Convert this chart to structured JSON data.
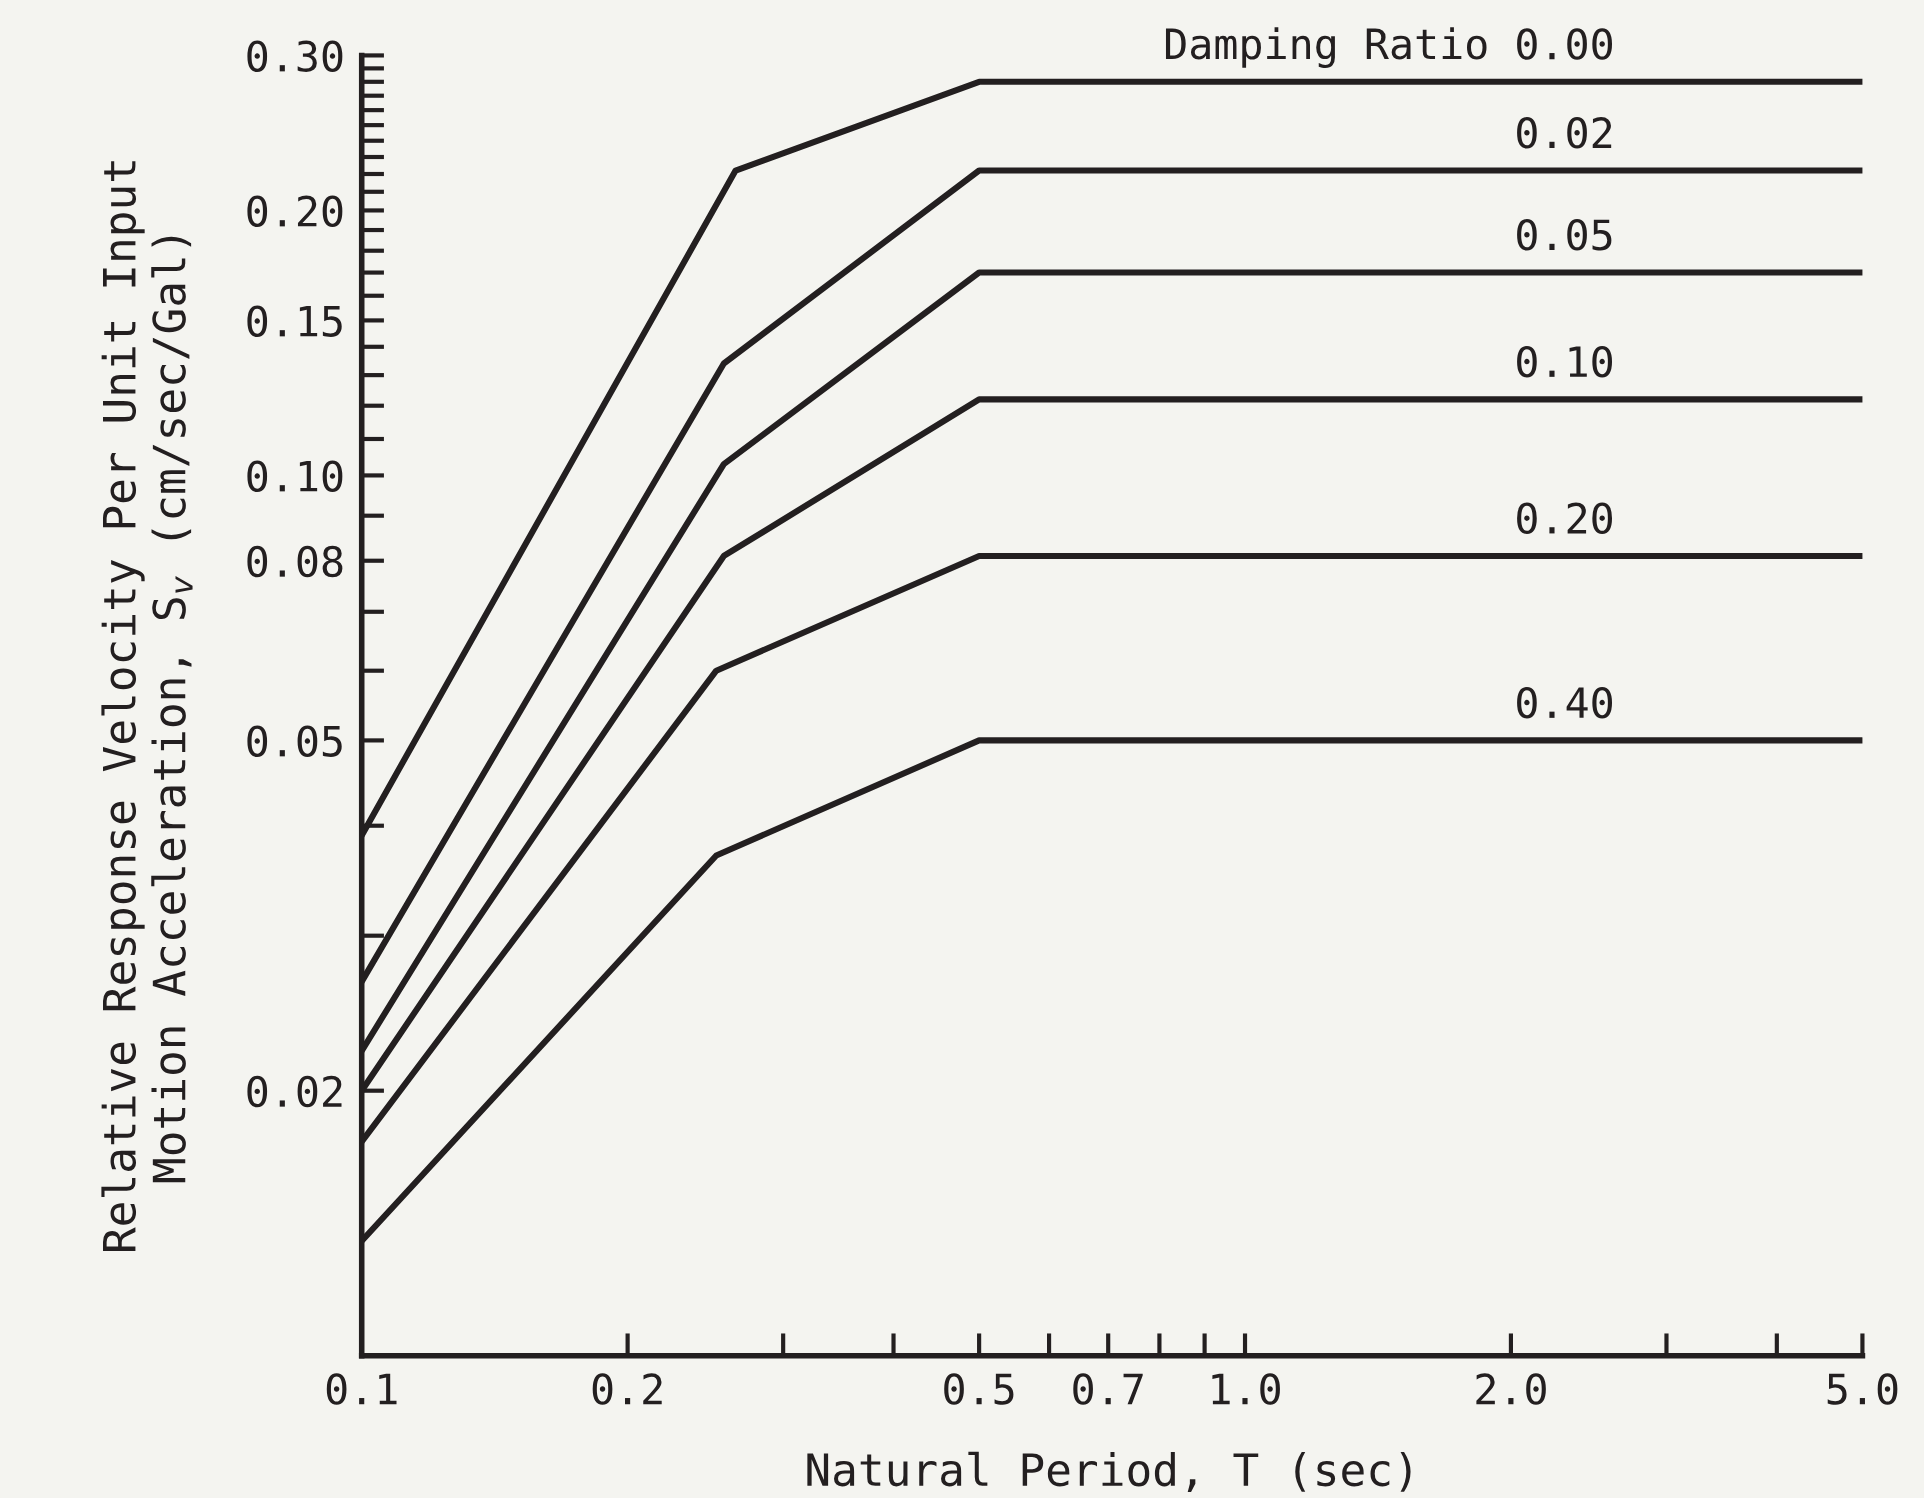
{
  "chart_data": {
    "type": "line",
    "xlabel": "Natural Period, T (sec)",
    "ylabel": "Relative Response Velocity Per Unit Input\nMotion Acceleration, S$_{v}$ (cm/sec/Gal)",
    "legend_title": "Damping Ratio",
    "log": "xy",
    "grid": false,
    "legend": false,
    "marker": "none",
    "line_style": "solid",
    "xlim": [
      0.1,
      5.0
    ],
    "ylim": [
      0.01,
      0.3
    ],
    "xticks": [
      {
        "value": 0.1,
        "label": "0.1"
      },
      {
        "value": 0.2,
        "label": "0.2"
      },
      {
        "value": 0.3,
        "label": null
      },
      {
        "value": 0.4,
        "label": null
      },
      {
        "value": 0.5,
        "label": "0.5"
      },
      {
        "value": 0.6,
        "label": null
      },
      {
        "value": 0.7,
        "label": "0.7"
      },
      {
        "value": 0.8,
        "label": null
      },
      {
        "value": 0.9,
        "label": null
      },
      {
        "value": 1.0,
        "label": "1.0"
      },
      {
        "value": 2.0,
        "label": "2.0"
      },
      {
        "value": 3.0,
        "label": null
      },
      {
        "value": 4.0,
        "label": null
      },
      {
        "value": 5.0,
        "label": "5.0"
      }
    ],
    "yticks": [
      {
        "value": 0.02,
        "label": "0.02"
      },
      {
        "value": 0.03,
        "label": null
      },
      {
        "value": 0.04,
        "label": null
      },
      {
        "value": 0.05,
        "label": "0.05"
      },
      {
        "value": 0.06,
        "label": null
      },
      {
        "value": 0.07,
        "label": null
      },
      {
        "value": 0.08,
        "label": "0.08"
      },
      {
        "value": 0.09,
        "label": null
      },
      {
        "value": 0.1,
        "label": "0.10"
      },
      {
        "value": 0.11,
        "label": null
      },
      {
        "value": 0.12,
        "label": null
      },
      {
        "value": 0.13,
        "label": null
      },
      {
        "value": 0.14,
        "label": null
      },
      {
        "value": 0.15,
        "label": "0.15"
      },
      {
        "value": 0.16,
        "label": null
      },
      {
        "value": 0.17,
        "label": null
      },
      {
        "value": 0.18,
        "label": null
      },
      {
        "value": 0.19,
        "label": null
      },
      {
        "value": 0.2,
        "label": "0.20"
      },
      {
        "value": 0.21,
        "label": null
      },
      {
        "value": 0.22,
        "label": null
      },
      {
        "value": 0.23,
        "label": null
      },
      {
        "value": 0.24,
        "label": null
      },
      {
        "value": 0.25,
        "label": null
      },
      {
        "value": 0.26,
        "label": null
      },
      {
        "value": 0.27,
        "label": null
      },
      {
        "value": 0.28,
        "label": null
      },
      {
        "value": 0.29,
        "label": null
      },
      {
        "value": 0.3,
        "label": "0.30"
      }
    ],
    "series": [
      {
        "name": "0.00",
        "color": "#231f20",
        "x": [
          0.1,
          0.265,
          0.5,
          5.0
        ],
        "values": [
          0.039,
          0.222,
          0.28,
          0.28
        ]
      },
      {
        "name": "0.02",
        "color": "#231f20",
        "x": [
          0.1,
          0.257,
          0.5,
          5.0
        ],
        "values": [
          0.0266,
          0.134,
          0.222,
          0.222
        ]
      },
      {
        "name": "0.05",
        "color": "#231f20",
        "x": [
          0.1,
          0.257,
          0.5,
          5.0
        ],
        "values": [
          0.0222,
          0.103,
          0.17,
          0.17
        ]
      },
      {
        "name": "0.10",
        "color": "#231f20",
        "x": [
          0.1,
          0.257,
          0.5,
          5.0
        ],
        "values": [
          0.02,
          0.081,
          0.122,
          0.122
        ]
      },
      {
        "name": "0.20",
        "color": "#231f20",
        "x": [
          0.1,
          0.252,
          0.5,
          5.0
        ],
        "values": [
          0.0175,
          0.06,
          0.081,
          0.081
        ]
      },
      {
        "name": "0.40",
        "color": "#231f20",
        "x": [
          0.1,
          0.252,
          0.5,
          5.0
        ],
        "values": [
          0.0135,
          0.037,
          0.05,
          0.05
        ]
      }
    ]
  }
}
